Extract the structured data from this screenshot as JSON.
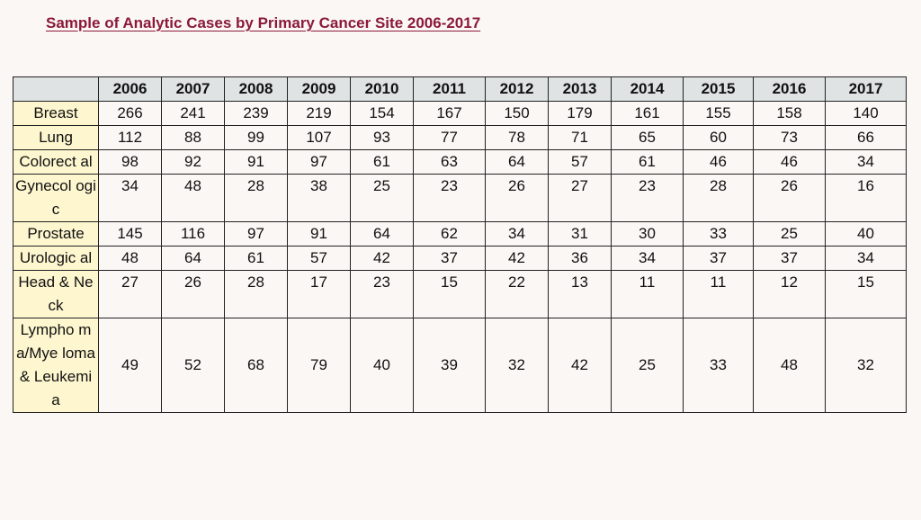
{
  "title": "Sample of Analytic Cases by Primary Cancer Site 2006-2017",
  "table": {
    "columns": [
      "2006",
      "2007",
      "2008",
      "2009",
      "2010",
      "2011",
      "2012",
      "2013",
      "2014",
      "2015",
      "2016",
      "2017"
    ],
    "rows": [
      {
        "site": "Breast",
        "values": [
          "266",
          "241",
          "239",
          "219",
          "154",
          "167",
          "150",
          "179",
          "161",
          "155",
          "158",
          "140"
        ]
      },
      {
        "site": "Lung",
        "values": [
          "112",
          "88",
          "99",
          "107",
          "93",
          "77",
          "78",
          "71",
          "65",
          "60",
          "73",
          "66"
        ]
      },
      {
        "site": "Colorect al",
        "values": [
          "98",
          "92",
          "91",
          "97",
          "61",
          "63",
          "64",
          "57",
          "61",
          "46",
          "46",
          "34"
        ]
      },
      {
        "site": "Gynecol ogic",
        "values": [
          "34",
          "48",
          "28",
          "38",
          "25",
          "23",
          "26",
          "27",
          "23",
          "28",
          "26",
          "16"
        ]
      },
      {
        "site": "Prostate",
        "values": [
          "145",
          "116",
          "97",
          "91",
          "64",
          "62",
          "34",
          "31",
          "30",
          "33",
          "25",
          "40"
        ]
      },
      {
        "site": "Urologic al",
        "values": [
          "48",
          "64",
          "61",
          "57",
          "42",
          "37",
          "42",
          "36",
          "34",
          "37",
          "37",
          "34"
        ]
      },
      {
        "site": "Head & Neck",
        "values": [
          "27",
          "26",
          "28",
          "17",
          "23",
          "15",
          "22",
          "13",
          "11",
          "11",
          "12",
          "15"
        ]
      },
      {
        "site": "Lympho ma/Mye loma & Leukemi a",
        "values": [
          "49",
          "52",
          "68",
          "79",
          "40",
          "39",
          "32",
          "42",
          "25",
          "33",
          "48",
          "32"
        ]
      }
    ]
  },
  "colors": {
    "title": "#8b1a3a",
    "header_bg": "#dfe3e3",
    "site_bg": "#fdf6cf",
    "page_bg": "#fbf7f4"
  }
}
